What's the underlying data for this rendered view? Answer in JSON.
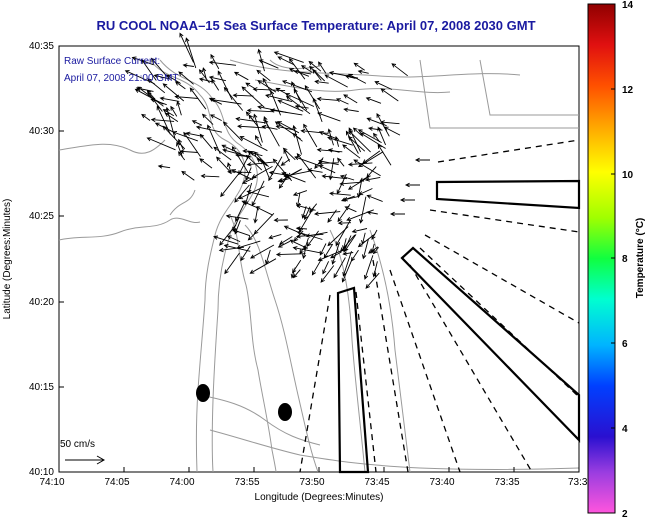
{
  "title": "RU COOL  NOAA–15  Sea Surface Temperature:  April 07, 2008 2030 GMT",
  "annotation": {
    "line1": "Raw Surface Current:",
    "line2": "April 07, 2008 21:00 GMT"
  },
  "scale_label": "50 cm/s",
  "x_axis": {
    "label": "Longitude (Degrees:Minutes)",
    "ticks": [
      "74:10",
      "74:05",
      "74:00",
      "73:55",
      "73:50",
      "73:45",
      "73:40",
      "73:35",
      "73:3"
    ]
  },
  "y_axis": {
    "label": "Latitude (Degrees:Minutes)",
    "ticks": [
      "40:10",
      "40:15",
      "40:20",
      "40:25",
      "40:30",
      "40:35"
    ]
  },
  "colorbar": {
    "label": "Temperature (°C)",
    "ticks": [
      "2",
      "4",
      "6",
      "8",
      "10",
      "12",
      "14"
    ],
    "min": 2,
    "max": 14
  },
  "colors": {
    "title": "#1a1aa0",
    "contour": "#9a9a9a",
    "vectors": "#000000"
  }
}
